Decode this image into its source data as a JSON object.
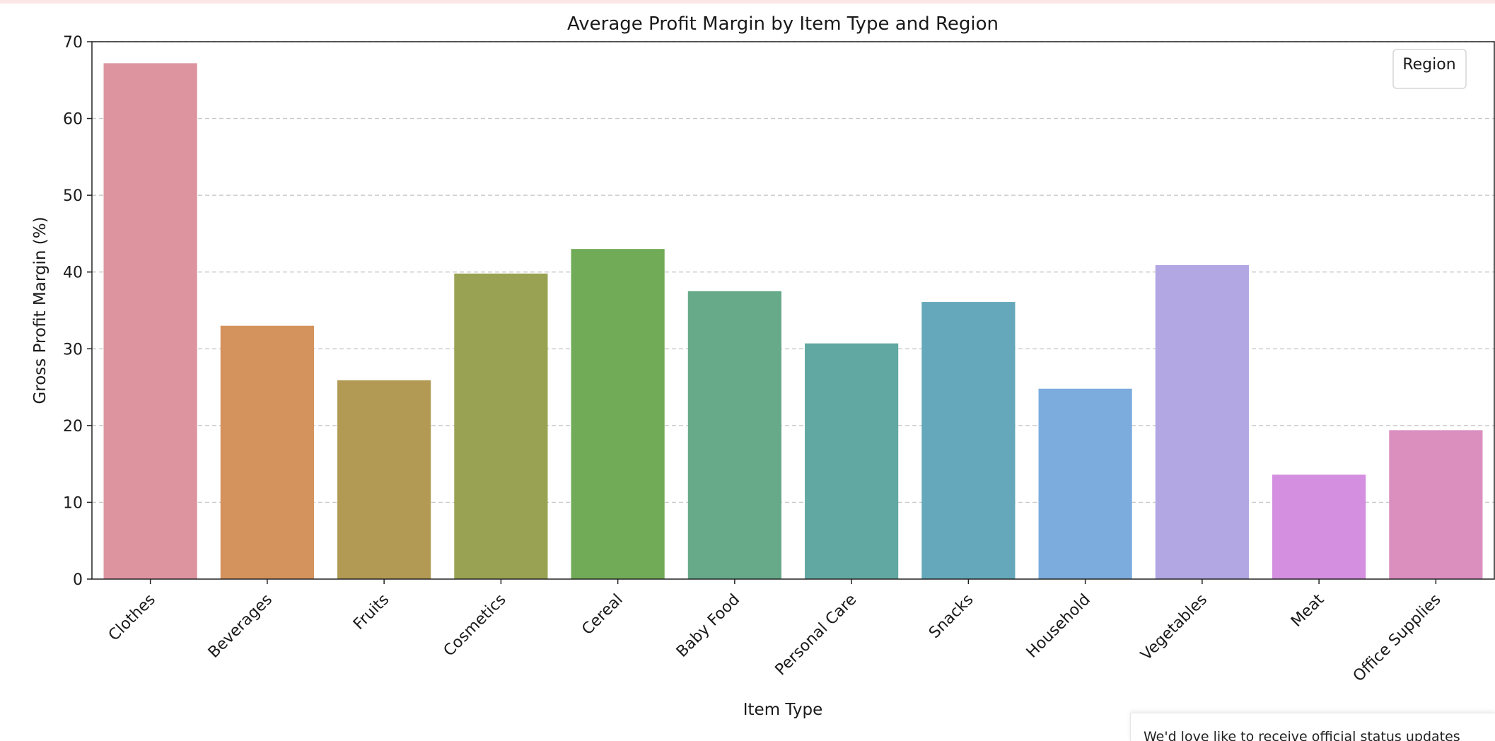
{
  "chart_data": {
    "type": "bar",
    "title": "Average Profit Margin by Item Type and Region",
    "xlabel": "Item Type",
    "ylabel": "Gross Profit Margin (%)",
    "ylim": [
      0,
      70
    ],
    "yticks": [
      0,
      10,
      20,
      30,
      40,
      50,
      60,
      70
    ],
    "grid": "horizontal-dashed",
    "legend": {
      "title": "Region",
      "placement": "top-right",
      "entries": []
    },
    "categories": [
      "Clothes",
      "Beverages",
      "Fruits",
      "Cosmetics",
      "Cereal",
      "Baby Food",
      "Personal Care",
      "Snacks",
      "Household",
      "Vegetables",
      "Meat",
      "Office Supplies"
    ],
    "values": [
      67.2,
      33.0,
      25.9,
      39.8,
      43.0,
      37.5,
      30.7,
      36.1,
      24.8,
      40.9,
      13.6,
      19.4
    ],
    "colors": [
      "#dd949f",
      "#d4925c",
      "#b29a54",
      "#99a252",
      "#72ab57",
      "#66aa89",
      "#62a8a2",
      "#66a8bb",
      "#7bacdd",
      "#b2a6e3",
      "#d48fe0",
      "#da8fbf"
    ]
  },
  "notice": {
    "text": "We'd love like to receive official status updates"
  }
}
